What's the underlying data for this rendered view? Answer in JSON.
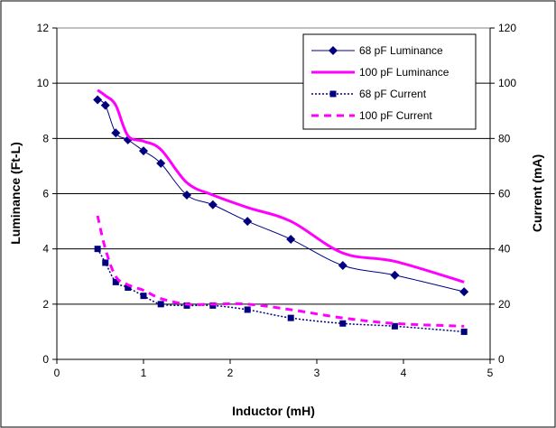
{
  "chart_data": {
    "type": "line",
    "xlabel": "Inductor (mH)",
    "ylabel": "Luminance (Ft-L)",
    "y2label": "Current (mA)",
    "xlim": [
      0,
      5
    ],
    "ylim": [
      0,
      12
    ],
    "y2lim": [
      0,
      120
    ],
    "x_ticks": [
      "0",
      "1",
      "2",
      "3",
      "4",
      "5"
    ],
    "y_ticks": [
      "0",
      "2",
      "4",
      "6",
      "8",
      "10",
      "12"
    ],
    "y2_ticks": [
      "0",
      "20",
      "40",
      "60",
      "80",
      "100",
      "120"
    ],
    "grid": "horizontal",
    "legend_position": "top-right",
    "series": [
      {
        "name": "68 pF Luminance",
        "axis": "left",
        "color": "#000080",
        "style": "solid-diamond",
        "x": [
          0.47,
          0.56,
          0.68,
          0.82,
          1.0,
          1.2,
          1.5,
          1.8,
          2.2,
          2.7,
          3.3,
          3.9,
          4.7
        ],
        "y": [
          9.4,
          9.2,
          8.2,
          7.95,
          7.55,
          7.1,
          5.95,
          5.6,
          5.0,
          4.35,
          3.4,
          3.05,
          2.45
        ]
      },
      {
        "name": "100 pF Luminance",
        "axis": "left",
        "color": "#ff00ff",
        "style": "thick-solid",
        "x": [
          0.47,
          0.56,
          0.68,
          0.82,
          1.0,
          1.2,
          1.5,
          1.8,
          2.2,
          2.7,
          3.3,
          3.9,
          4.7
        ],
        "y": [
          9.75,
          9.55,
          9.2,
          8.1,
          7.9,
          7.6,
          6.4,
          5.95,
          5.5,
          5.0,
          3.85,
          3.55,
          2.8
        ]
      },
      {
        "name": "68 pF Current",
        "axis": "right",
        "color": "#000080",
        "style": "dotted-square",
        "x": [
          0.47,
          0.56,
          0.68,
          0.82,
          1.0,
          1.2,
          1.5,
          1.8,
          2.2,
          2.7,
          3.3,
          3.9,
          4.7
        ],
        "y": [
          40,
          35,
          28,
          26,
          23,
          20,
          19.5,
          19.5,
          18,
          15,
          13,
          12,
          10
        ]
      },
      {
        "name": "100 pF Current",
        "axis": "right",
        "color": "#ff00ff",
        "style": "dashed",
        "x": [
          0.47,
          0.56,
          0.68,
          0.82,
          1.0,
          1.2,
          1.5,
          1.8,
          2.2,
          2.7,
          3.3,
          3.9,
          4.7
        ],
        "y": [
          52,
          40,
          30,
          27,
          25,
          22,
          20,
          20,
          20,
          18,
          15,
          13,
          12
        ]
      }
    ]
  }
}
